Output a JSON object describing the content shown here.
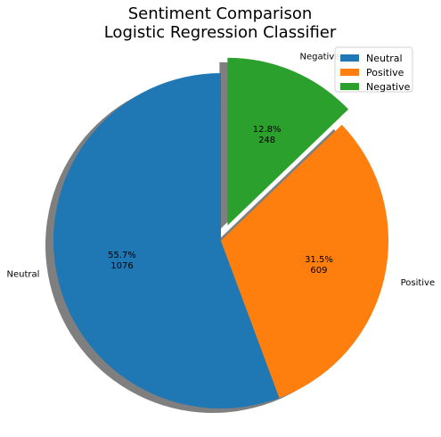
{
  "chart_data": {
    "type": "pie",
    "title": "Sentiment Comparison\nLogistic Regression Classifier",
    "categories": [
      "Neutral",
      "Positive",
      "Negative"
    ],
    "values": [
      1076,
      609,
      248
    ],
    "percent_labels": [
      "55.7%",
      "31.5%",
      "12.8%"
    ],
    "colors": [
      "#1f77b4",
      "#ff7f0e",
      "#2ca02c"
    ],
    "explode": [
      0,
      0,
      0.1
    ],
    "start_angle_deg": 90,
    "shadow": true,
    "legend": {
      "placement": "upper right",
      "entries": [
        "Neutral",
        "Positive",
        "Negative"
      ]
    }
  }
}
